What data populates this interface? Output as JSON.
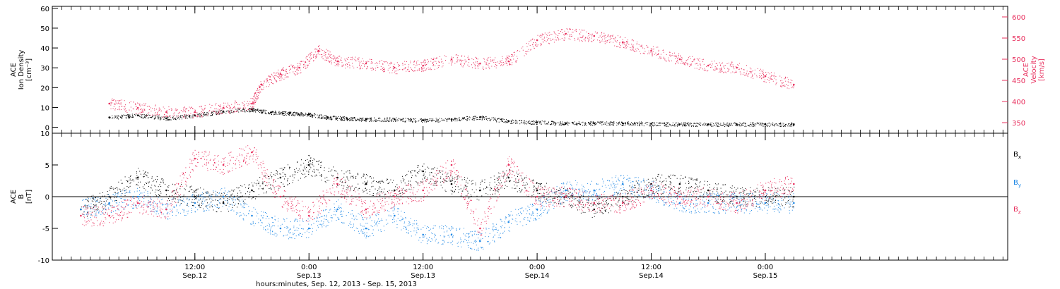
{
  "chart_data": [
    {
      "type": "scatter",
      "panel": "top",
      "y_left": {
        "label_lines": [
          "ACE",
          "Ion Density",
          "[cm⁻³]"
        ],
        "ylim": [
          -3,
          61
        ],
        "ticks": [
          0,
          10,
          20,
          30,
          40,
          50,
          60
        ]
      },
      "y_right": {
        "label_lines": [
          "ACE",
          "Velocity",
          "[km/s]"
        ],
        "ylim": [
          325,
          625
        ],
        "ticks": [
          350,
          400,
          450,
          500,
          550,
          600
        ],
        "color": "#e8305e"
      },
      "series": [
        {
          "axis": "left",
          "color": "#000000",
          "x": [
            "2013-09-12T03:00",
            "2013-09-12T06:00",
            "2013-09-12T09:00",
            "2013-09-12T12:00",
            "2013-09-12T15:00",
            "2013-09-12T18:00",
            "2013-09-12T20:00",
            "2013-09-12T22:00",
            "2013-09-13T00:00",
            "2013-09-13T02:00",
            "2013-09-13T04:00",
            "2013-09-13T06:00",
            "2013-09-13T09:00",
            "2013-09-13T12:00",
            "2013-09-13T15:00",
            "2013-09-13T18:00",
            "2013-09-13T21:00",
            "2013-09-14T00:00",
            "2013-09-14T03:00",
            "2013-09-14T06:00",
            "2013-09-14T09:00",
            "2013-09-14T12:00",
            "2013-09-14T15:00",
            "2013-09-14T18:00",
            "2013-09-14T21:00",
            "2013-09-15T00:00",
            "2013-09-15T03:00"
          ],
          "y": [
            5,
            6,
            4.5,
            6,
            8,
            9,
            7.5,
            7,
            6.5,
            5,
            4.5,
            4,
            4,
            3.5,
            4,
            5,
            3,
            2.5,
            2,
            2,
            2,
            1.8,
            1.5,
            1.5,
            1.5,
            1.5,
            1.5
          ]
        },
        {
          "axis": "right",
          "color": "#e8305e",
          "x": [
            "2013-09-12T03:00",
            "2013-09-12T06:00",
            "2013-09-12T09:00",
            "2013-09-12T12:00",
            "2013-09-12T15:00",
            "2013-09-12T18:00",
            "2013-09-12T19:00",
            "2013-09-12T21:00",
            "2013-09-12T23:00",
            "2013-09-13T01:00",
            "2013-09-13T03:00",
            "2013-09-13T06:00",
            "2013-09-13T09:00",
            "2013-09-13T12:00",
            "2013-09-13T15:00",
            "2013-09-13T18:00",
            "2013-09-13T21:00",
            "2013-09-14T00:00",
            "2013-09-14T03:00",
            "2013-09-14T06:00",
            "2013-09-14T09:00",
            "2013-09-14T12:00",
            "2013-09-14T15:00",
            "2013-09-14T18:00",
            "2013-09-14T21:00",
            "2013-09-15T00:00",
            "2013-09-15T03:00"
          ],
          "y": [
            395,
            385,
            375,
            375,
            385,
            395,
            440,
            465,
            480,
            520,
            495,
            490,
            480,
            485,
            500,
            490,
            495,
            545,
            560,
            555,
            540,
            520,
            500,
            485,
            480,
            460,
            440
          ]
        }
      ]
    },
    {
      "type": "scatter",
      "panel": "bottom",
      "y_left": {
        "label_lines": [
          "ACE",
          "B",
          "[nT]"
        ],
        "ylim": [
          -10,
          10
        ],
        "ticks": [
          -10,
          -5,
          0,
          5,
          10
        ]
      },
      "zero_line": true,
      "legend": {
        "placement": "right",
        "entries": [
          {
            "name": "B",
            "sub": "x",
            "color": "#000000"
          },
          {
            "name": "B",
            "sub": "y",
            "color": "#1f88e5"
          },
          {
            "name": "B",
            "sub": "z",
            "color": "#e8305e"
          }
        ]
      },
      "series": [
        {
          "name": "Bx",
          "color": "#000000",
          "x": [
            "2013-09-12T00:00",
            "2013-09-12T03:00",
            "2013-09-12T06:00",
            "2013-09-12T09:00",
            "2013-09-12T12:00",
            "2013-09-12T15:00",
            "2013-09-12T18:00",
            "2013-09-12T21:00",
            "2013-09-13T00:00",
            "2013-09-13T03:00",
            "2013-09-13T06:00",
            "2013-09-13T09:00",
            "2013-09-13T12:00",
            "2013-09-13T15:00",
            "2013-09-13T18:00",
            "2013-09-13T21:00",
            "2013-09-14T00:00",
            "2013-09-14T03:00",
            "2013-09-14T06:00",
            "2013-09-14T09:00",
            "2013-09-14T12:00",
            "2013-09-14T15:00",
            "2013-09-14T18:00",
            "2013-09-14T21:00",
            "2013-09-15T00:00",
            "2013-09-15T03:00"
          ],
          "y": [
            -2,
            0,
            3,
            1,
            0,
            -1,
            1,
            3,
            5,
            3,
            2,
            1,
            4,
            2,
            1,
            3,
            1,
            0,
            -2,
            0,
            2,
            2,
            1,
            0,
            0,
            0
          ]
        },
        {
          "name": "By",
          "color": "#1f88e5",
          "x": [
            "2013-09-12T00:00",
            "2013-09-12T03:00",
            "2013-09-12T06:00",
            "2013-09-12T09:00",
            "2013-09-12T12:00",
            "2013-09-12T15:00",
            "2013-09-12T18:00",
            "2013-09-12T21:00",
            "2013-09-13T00:00",
            "2013-09-13T03:00",
            "2013-09-13T06:00",
            "2013-09-13T09:00",
            "2013-09-13T12:00",
            "2013-09-13T15:00",
            "2013-09-13T18:00",
            "2013-09-13T21:00",
            "2013-09-14T00:00",
            "2013-09-14T03:00",
            "2013-09-14T06:00",
            "2013-09-14T09:00",
            "2013-09-14T12:00",
            "2013-09-14T15:00",
            "2013-09-14T18:00",
            "2013-09-14T21:00",
            "2013-09-15T00:00",
            "2013-09-15T03:00"
          ],
          "y": [
            -2,
            -1,
            0,
            -2,
            -1,
            0,
            -3,
            -5,
            -5,
            -2,
            -5,
            -3,
            -6,
            -6,
            -7,
            -4,
            -2,
            1,
            1,
            2,
            1,
            -1,
            -1,
            -1,
            -1,
            -1
          ]
        },
        {
          "name": "Bz",
          "color": "#e8305e",
          "x": [
            "2013-09-12T00:00",
            "2013-09-12T03:00",
            "2013-09-12T06:00",
            "2013-09-12T09:00",
            "2013-09-12T12:00",
            "2013-09-12T15:00",
            "2013-09-12T18:00",
            "2013-09-12T21:00",
            "2013-09-13T00:00",
            "2013-09-13T03:00",
            "2013-09-13T06:00",
            "2013-09-13T09:00",
            "2013-09-13T12:00",
            "2013-09-13T15:00",
            "2013-09-13T18:00",
            "2013-09-13T21:00",
            "2013-09-14T00:00",
            "2013-09-14T03:00",
            "2013-09-14T06:00",
            "2013-09-14T09:00",
            "2013-09-14T12:00",
            "2013-09-14T15:00",
            "2013-09-14T18:00",
            "2013-09-14T21:00",
            "2013-09-15T00:00",
            "2013-09-15T03:00"
          ],
          "y": [
            -3,
            -3,
            -1,
            -2,
            6,
            5,
            7,
            0,
            -3,
            2,
            -2,
            0,
            1,
            5,
            -5,
            5,
            0,
            0,
            -1,
            -1,
            1,
            0,
            0,
            -1,
            1,
            2
          ]
        }
      ]
    }
  ],
  "x_axis": {
    "ticks": [
      {
        "t": "2013-09-12T12:00",
        "time": "12:00",
        "date": "Sep.12"
      },
      {
        "t": "2013-09-13T00:00",
        "time": "0:00",
        "date": "Sep.13"
      },
      {
        "t": "2013-09-13T12:00",
        "time": "12:00",
        "date": "Sep.13"
      },
      {
        "t": "2013-09-14T00:00",
        "time": "0:00",
        "date": "Sep.14"
      },
      {
        "t": "2013-09-14T12:00",
        "time": "12:00",
        "date": "Sep.14"
      },
      {
        "t": "2013-09-15T00:00",
        "time": "0:00",
        "date": "Sep.15"
      }
    ],
    "title": "hours:minutes, Sep. 12, 2013 - Sep. 15, 2013",
    "xlim": [
      "2013-09-11T21:00",
      "2013-09-16T01:30"
    ]
  }
}
